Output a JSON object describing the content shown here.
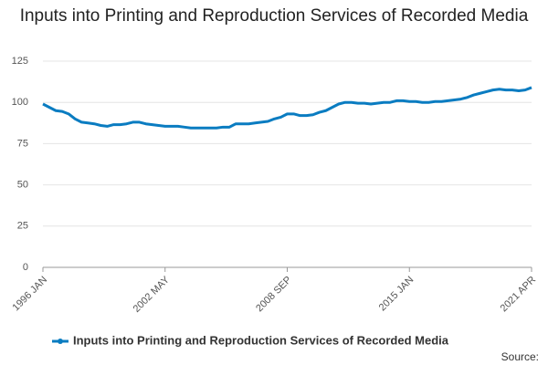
{
  "chart_data": {
    "type": "line",
    "title": "Inputs into Printing and Reproduction Services of Recorded Media",
    "source": "Source:",
    "categories": [
      "1996 JAN",
      null,
      null,
      null,
      null,
      null,
      null,
      null,
      null,
      null,
      null,
      null,
      null,
      null,
      null,
      null,
      null,
      null,
      null,
      "2002 MAY",
      null,
      null,
      null,
      null,
      null,
      null,
      null,
      null,
      null,
      null,
      null,
      null,
      null,
      null,
      null,
      null,
      null,
      null,
      "2008 SEP",
      null,
      null,
      null,
      null,
      null,
      null,
      null,
      null,
      null,
      null,
      null,
      null,
      null,
      null,
      null,
      null,
      null,
      null,
      "2015 JAN",
      null,
      null,
      null,
      null,
      null,
      null,
      null,
      null,
      null,
      null,
      null,
      null,
      null,
      null,
      null,
      null,
      null,
      null,
      "2021 APR"
    ],
    "series": [
      {
        "name": "Inputs into Printing and Reproduction Services of Recorded Media",
        "color": "#0a7cc1",
        "values": [
          99,
          97,
          95,
          94.5,
          93,
          90,
          88,
          87.5,
          87,
          86,
          85.5,
          86.5,
          86.5,
          87,
          88,
          88,
          87,
          86.5,
          86,
          85.5,
          85.5,
          85.5,
          85,
          84.5,
          84.5,
          84.5,
          84.5,
          84.5,
          85,
          85,
          87,
          87,
          87,
          87.5,
          88,
          88.5,
          90,
          91,
          93,
          93,
          92,
          92,
          92.5,
          94,
          95,
          97,
          99,
          100,
          100,
          99.5,
          99.5,
          99,
          99.5,
          100,
          100,
          101,
          101,
          100.5,
          100.5,
          100,
          100,
          100.5,
          100.5,
          101,
          101.5,
          102,
          103,
          104.5,
          105.5,
          106.5,
          107.5,
          108,
          107.5,
          107.5,
          107,
          107.5,
          109
        ]
      }
    ],
    "ylim": [
      0,
      125
    ],
    "yticks": [
      0,
      25,
      50,
      75,
      100,
      125
    ],
    "grid": true
  }
}
